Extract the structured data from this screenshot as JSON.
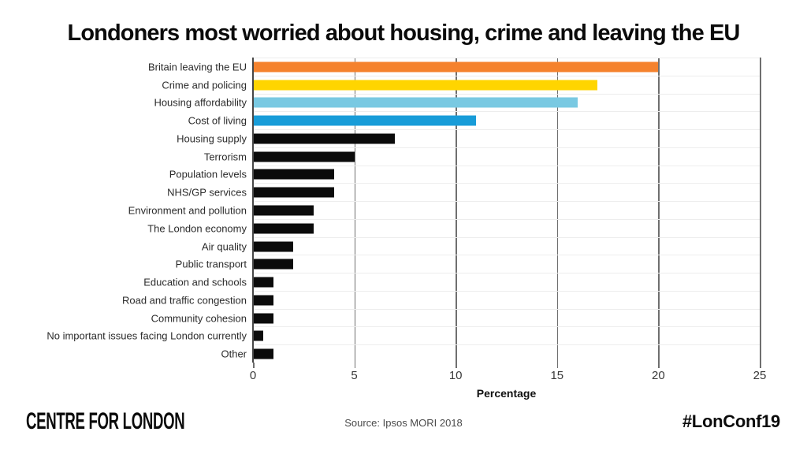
{
  "chart_data": {
    "type": "bar",
    "orientation": "horizontal",
    "title": "Londoners most worried about housing, crime and leaving the EU",
    "xlabel": "Percentage",
    "xlim": [
      0,
      25
    ],
    "xticks": [
      0,
      5,
      10,
      15,
      20,
      25
    ],
    "grid": {
      "vertical_gridlines": true,
      "row_separators": true,
      "legend": "none"
    },
    "categories": [
      "Britain leaving the EU",
      "Crime and policing",
      "Housing affordability",
      "Cost of living",
      "Housing supply",
      "Terrorism",
      "Population levels",
      "NHS/GP services",
      "Environment and pollution",
      "The London economy",
      "Air quality",
      "Public transport",
      "Education and schools",
      "Road and traffic congestion",
      "Community cohesion",
      "No important issues facing London currently",
      "Other"
    ],
    "values": [
      20,
      17,
      16,
      11,
      7,
      5,
      4,
      4,
      3,
      3,
      2,
      2,
      1,
      1,
      1,
      0.5,
      1
    ],
    "bar_colors": [
      "#F5822D",
      "#FFD500",
      "#79C9E2",
      "#189CD8",
      "#0B0B0B",
      "#0B0B0B",
      "#0B0B0B",
      "#0B0B0B",
      "#0B0B0B",
      "#0B0B0B",
      "#0B0B0B",
      "#0B0B0B",
      "#0B0B0B",
      "#0B0B0B",
      "#0B0B0B",
      "#0B0B0B",
      "#0B0B0B"
    ]
  },
  "theme": {
    "accent_orange": "#F5822D",
    "accent_yellow": "#FFD500",
    "accent_light_blue": "#79C9E2",
    "accent_blue": "#189CD8",
    "bar_black": "#0B0B0B",
    "gridline_gray": "#6F6F6F",
    "axis_gray": "#474747",
    "row_separator": "#EDEDED",
    "background": "#FFFFFF"
  },
  "footer": {
    "logo_text": "CENTRE FOR LONDON",
    "source": "Source: Ipsos MORI 2018",
    "hashtag": "#LonConf19"
  }
}
